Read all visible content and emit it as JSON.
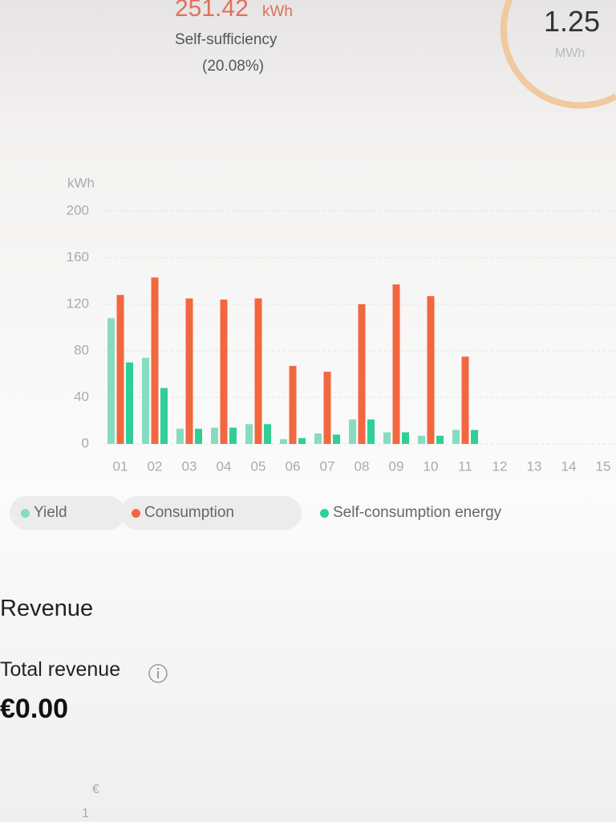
{
  "header": {
    "energy_value": "251.42",
    "energy_unit": "kWh",
    "ratio_label": "Self-sufficiency",
    "ratio_value": "(20.08%)",
    "gauge_value": "1.25",
    "gauge_unit": "MWh"
  },
  "chart_data": {
    "type": "bar",
    "y_label": "kWh",
    "categories": [
      "01",
      "02",
      "03",
      "04",
      "05",
      "06",
      "07",
      "08",
      "09",
      "10",
      "11",
      "12",
      "13",
      "14",
      "15"
    ],
    "series": [
      {
        "name": "Yield",
        "color": "#86dcc0",
        "values": [
          108,
          74,
          13,
          14,
          17,
          4,
          9,
          21,
          10,
          7,
          12,
          null,
          null,
          null,
          null
        ]
      },
      {
        "name": "Consumption",
        "color": "#f2673f",
        "values": [
          128,
          143,
          125,
          124,
          125,
          67,
          62,
          120,
          137,
          127,
          75,
          null,
          null,
          null,
          null
        ]
      },
      {
        "name": "Self-consumption energy",
        "color": "#2fcf96",
        "values": [
          70,
          48,
          13,
          14,
          17,
          5,
          8,
          21,
          10,
          7,
          12,
          null,
          null,
          null,
          null
        ]
      }
    ],
    "ylim": [
      0,
      200
    ],
    "yticks": [
      0,
      40,
      80,
      120,
      160,
      200
    ],
    "grid": true
  },
  "revenue": {
    "title": "Revenue",
    "total_label": "Total revenue",
    "total_value": "€0.00",
    "axis_unit": "€",
    "axis_tick": "1"
  }
}
